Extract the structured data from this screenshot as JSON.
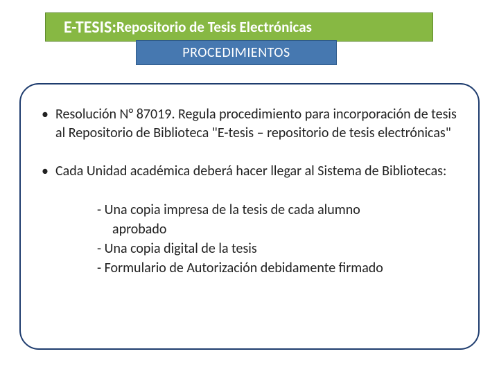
{
  "title": {
    "bold": "E-TESIS:",
    "rest": " Repositorio de Tesis Electrónicas",
    "bg_color": "#87b843",
    "text_color": "#ffffff",
    "bold_fontsize": 24,
    "rest_fontsize": 21
  },
  "subtitle": {
    "text": "PROCEDIMIENTOS",
    "bg_color": "#4678b0",
    "text_color": "#ffffff",
    "fontsize": 20
  },
  "box": {
    "border_color": "#1e3c6e",
    "body_color": "#222222",
    "fontsize": 20
  },
  "bullets": [
    {
      "text": "Resolución N° 87019. Regula procedimiento para incorporación de tesis al Repositorio de Biblioteca \"E-tesis – repositorio de tesis electrónicas\""
    },
    {
      "text": "Cada Unidad académica deberá hacer llegar al Sistema de Bibliotecas:"
    }
  ],
  "subitems": {
    "line1": "- Una copia impresa de la tesis de cada alumno",
    "line1b": "  aprobado",
    "line2": "- Una copia digital de la tesis",
    "line3": "- Formulario de Autorización debidamente firmado"
  }
}
